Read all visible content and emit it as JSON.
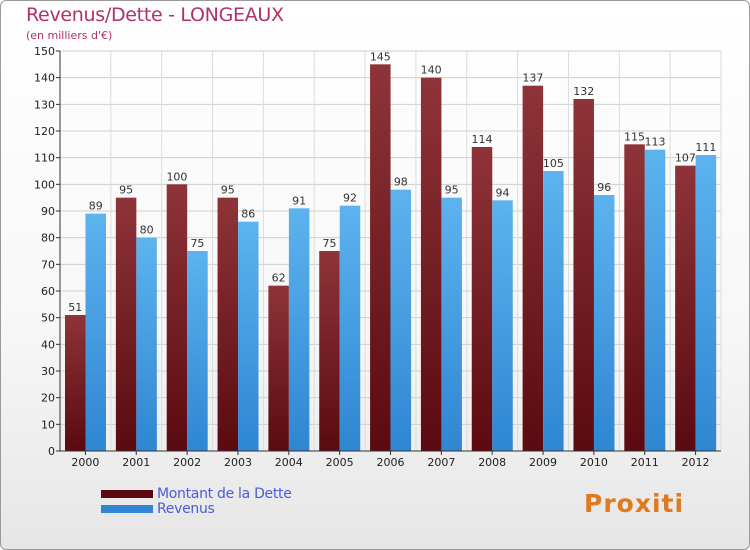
{
  "title": "Revenus/Dette - LONGEAUX",
  "subtitle": "(en milliers d'€)",
  "logo_text": "Proxiti",
  "colors": {
    "dette_dark": "#5a0a10",
    "dette_light": "#8e3439",
    "revenus_dark": "#2f86d2",
    "revenus_light": "#5db3ee",
    "title": "#b0306a",
    "legend_text": "#4d5bd6"
  },
  "chart_data": {
    "type": "bar",
    "title": "Revenus/Dette - LONGEAUX",
    "subtitle": "(en milliers d'€)",
    "categories": [
      "2000",
      "2001",
      "2002",
      "2003",
      "2004",
      "2005",
      "2006",
      "2007",
      "2008",
      "2009",
      "2010",
      "2011",
      "2012"
    ],
    "series": [
      {
        "name": "Montant de la Dette",
        "values": [
          51,
          95,
          100,
          95,
          62,
          75,
          145,
          140,
          114,
          137,
          132,
          115,
          107
        ]
      },
      {
        "name": "Revenus",
        "values": [
          89,
          80,
          75,
          86,
          91,
          92,
          98,
          95,
          94,
          105,
          96,
          113,
          111
        ]
      }
    ],
    "ylim": [
      0,
      150
    ],
    "yticks": [
      0,
      10,
      20,
      30,
      40,
      50,
      60,
      70,
      80,
      90,
      100,
      110,
      120,
      130,
      140,
      150
    ],
    "grid": true,
    "legend_position": "bottom-left",
    "data_labels": true
  }
}
